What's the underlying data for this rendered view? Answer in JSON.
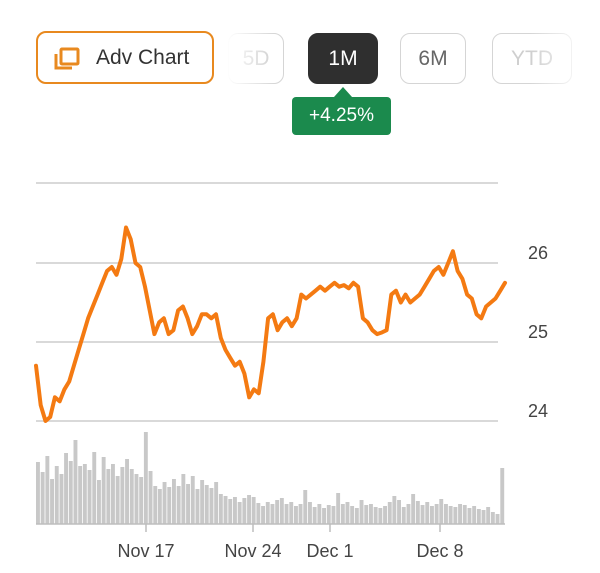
{
  "toolbar": {
    "adv_chart_label": "Adv Chart",
    "ranges": [
      {
        "label": "5D",
        "state": "faded"
      },
      {
        "label": "1M",
        "state": "active"
      },
      {
        "label": "6M",
        "state": "normal"
      },
      {
        "label": "YTD",
        "state": "faded"
      }
    ],
    "change_badge": "+4.25%"
  },
  "colors": {
    "accent": "#e8891f",
    "line": "#f47a12",
    "positive": "#1b8a4d",
    "volume": "#c8c8c8",
    "grid": "#d9d9d9"
  },
  "chart_data": {
    "type": "line",
    "y_ticks": [
      "24",
      "25",
      "26"
    ],
    "ylim": [
      23.85,
      27.0
    ],
    "grid": true,
    "x_tick_labels": [
      "Nov 17",
      "Nov 24",
      "Dec 1",
      "Dec 8"
    ],
    "series": [
      {
        "values": [
          24.7,
          24.2,
          24.0,
          24.05,
          24.3,
          24.25,
          24.4,
          24.5,
          24.7,
          24.9,
          25.1,
          25.3,
          25.45,
          25.6,
          25.75,
          25.9,
          25.95,
          25.85,
          26.05,
          26.45,
          26.3,
          26.0,
          25.95,
          25.7,
          25.4,
          25.1,
          25.25,
          25.3,
          25.1,
          25.15,
          25.4,
          25.45,
          25.3,
          25.1,
          25.2,
          25.35,
          25.35,
          25.3,
          25.35,
          25.05,
          24.9,
          24.8,
          24.7,
          24.75,
          24.6,
          24.3,
          24.4,
          24.35,
          24.75,
          25.3,
          25.35,
          25.15,
          25.25,
          25.3,
          25.2,
          25.3,
          25.6,
          25.55,
          25.6,
          25.65,
          25.7,
          25.65,
          25.7,
          25.75,
          25.7,
          25.72,
          25.68,
          25.75,
          25.7,
          25.3,
          25.25,
          25.15,
          25.1,
          25.12,
          25.15,
          25.6,
          25.65,
          25.5,
          25.6,
          25.5,
          25.55,
          25.6,
          25.7,
          25.8,
          25.9,
          25.95,
          25.85,
          26.0,
          26.15,
          25.9,
          25.8,
          25.6,
          25.55,
          25.35,
          25.3,
          25.45,
          25.5,
          25.55,
          25.65,
          25.75
        ]
      }
    ],
    "volume": [
      0.62,
      0.52,
      0.68,
      0.45,
      0.58,
      0.5,
      0.71,
      0.63,
      0.84,
      0.58,
      0.6,
      0.54,
      0.72,
      0.44,
      0.67,
      0.55,
      0.6,
      0.48,
      0.57,
      0.65,
      0.55,
      0.5,
      0.47,
      0.92,
      0.53,
      0.38,
      0.35,
      0.42,
      0.37,
      0.45,
      0.38,
      0.5,
      0.4,
      0.48,
      0.35,
      0.44,
      0.39,
      0.36,
      0.42,
      0.3,
      0.28,
      0.25,
      0.27,
      0.22,
      0.26,
      0.29,
      0.27,
      0.21,
      0.18,
      0.22,
      0.2,
      0.24,
      0.26,
      0.2,
      0.22,
      0.18,
      0.2,
      0.34,
      0.22,
      0.17,
      0.2,
      0.16,
      0.19,
      0.18,
      0.31,
      0.2,
      0.22,
      0.18,
      0.16,
      0.24,
      0.19,
      0.2,
      0.17,
      0.16,
      0.18,
      0.22,
      0.28,
      0.24,
      0.17,
      0.2,
      0.3,
      0.23,
      0.19,
      0.22,
      0.18,
      0.2,
      0.25,
      0.2,
      0.18,
      0.17,
      0.2,
      0.19,
      0.16,
      0.18,
      0.15,
      0.14,
      0.17,
      0.12,
      0.1,
      0.56
    ]
  }
}
